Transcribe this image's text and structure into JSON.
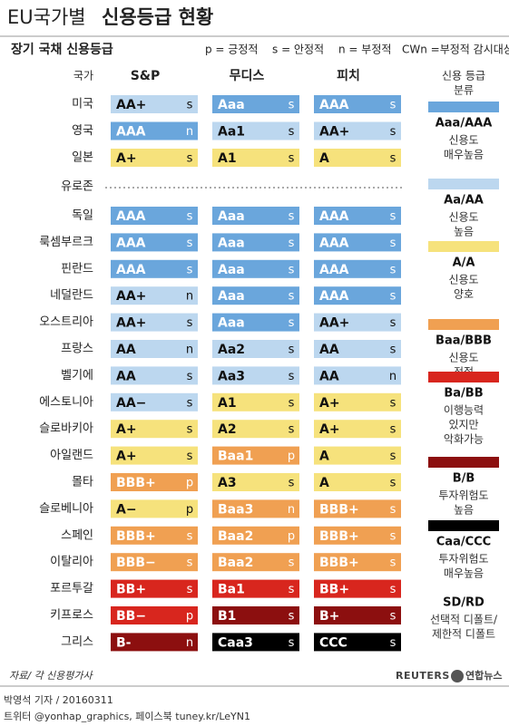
{
  "header": {
    "title_prefix": "EU국가별",
    "title_main": "신용등급 현황",
    "subtitle": "장기 국채 신용등급",
    "outlook_keys": [
      "p = 긍정적",
      "s = 안정적",
      "n = 부정적",
      "CWn =부정적 감시대상"
    ]
  },
  "columns": {
    "country": "국가",
    "agencies": [
      "S&P",
      "무디스",
      "피치"
    ],
    "legend": [
      "신용 등급",
      "분류"
    ]
  },
  "rows_top": [
    {
      "country": "미국",
      "cells": [
        {
          "rating": "AA+",
          "outlook": "s",
          "color": "#bcd7ef"
        },
        {
          "rating": "Aaa",
          "outlook": "s",
          "color": "#6aa6dc"
        },
        {
          "rating": "AAA",
          "outlook": "s",
          "color": "#6aa6dc"
        }
      ]
    },
    {
      "country": "영국",
      "cells": [
        {
          "rating": "AAA",
          "outlook": "n",
          "color": "#6aa6dc"
        },
        {
          "rating": "Aa1",
          "outlook": "s",
          "color": "#bcd7ef"
        },
        {
          "rating": "AA+",
          "outlook": "s",
          "color": "#bcd7ef"
        }
      ]
    },
    {
      "country": "일본",
      "cells": [
        {
          "rating": "A+",
          "outlook": "s",
          "color": "#f6e27c"
        },
        {
          "rating": "A1",
          "outlook": "s",
          "color": "#f6e27c"
        },
        {
          "rating": "A",
          "outlook": "s",
          "color": "#f6e27c"
        }
      ]
    }
  ],
  "section": "유로존",
  "rows_euro": [
    {
      "country": "독일",
      "cells": [
        {
          "rating": "AAA",
          "outlook": "s",
          "color": "#6aa6dc"
        },
        {
          "rating": "Aaa",
          "outlook": "s",
          "color": "#6aa6dc"
        },
        {
          "rating": "AAA",
          "outlook": "s",
          "color": "#6aa6dc"
        }
      ]
    },
    {
      "country": "룩셈부르크",
      "cells": [
        {
          "rating": "AAA",
          "outlook": "s",
          "color": "#6aa6dc"
        },
        {
          "rating": "Aaa",
          "outlook": "s",
          "color": "#6aa6dc"
        },
        {
          "rating": "AAA",
          "outlook": "s",
          "color": "#6aa6dc"
        }
      ]
    },
    {
      "country": "핀란드",
      "cells": [
        {
          "rating": "AAA",
          "outlook": "s",
          "color": "#6aa6dc"
        },
        {
          "rating": "Aaa",
          "outlook": "s",
          "color": "#6aa6dc"
        },
        {
          "rating": "AAA",
          "outlook": "s",
          "color": "#6aa6dc"
        }
      ]
    },
    {
      "country": "네덜란드",
      "cells": [
        {
          "rating": "AA+",
          "outlook": "n",
          "color": "#bcd7ef"
        },
        {
          "rating": "Aaa",
          "outlook": "s",
          "color": "#6aa6dc"
        },
        {
          "rating": "AAA",
          "outlook": "s",
          "color": "#6aa6dc"
        }
      ]
    },
    {
      "country": "오스트리아",
      "cells": [
        {
          "rating": "AA+",
          "outlook": "s",
          "color": "#bcd7ef"
        },
        {
          "rating": "Aaa",
          "outlook": "s",
          "color": "#6aa6dc"
        },
        {
          "rating": "AA+",
          "outlook": "s",
          "color": "#bcd7ef"
        }
      ]
    },
    {
      "country": "프랑스",
      "cells": [
        {
          "rating": "AA",
          "outlook": "n",
          "color": "#bcd7ef"
        },
        {
          "rating": "Aa2",
          "outlook": "s",
          "color": "#bcd7ef"
        },
        {
          "rating": "AA",
          "outlook": "s",
          "color": "#bcd7ef"
        }
      ]
    },
    {
      "country": "벨기에",
      "cells": [
        {
          "rating": "AA",
          "outlook": "s",
          "color": "#bcd7ef"
        },
        {
          "rating": "Aa3",
          "outlook": "s",
          "color": "#bcd7ef"
        },
        {
          "rating": "AA",
          "outlook": "n",
          "color": "#bcd7ef"
        }
      ]
    },
    {
      "country": "에스토니아",
      "cells": [
        {
          "rating": "AA−",
          "outlook": "s",
          "color": "#bcd7ef"
        },
        {
          "rating": "A1",
          "outlook": "s",
          "color": "#f6e27c"
        },
        {
          "rating": "A+",
          "outlook": "s",
          "color": "#f6e27c"
        }
      ]
    },
    {
      "country": "슬로바키아",
      "cells": [
        {
          "rating": "A+",
          "outlook": "s",
          "color": "#f6e27c"
        },
        {
          "rating": "A2",
          "outlook": "s",
          "color": "#f6e27c"
        },
        {
          "rating": "A+",
          "outlook": "s",
          "color": "#f6e27c"
        }
      ]
    },
    {
      "country": "아일랜드",
      "cells": [
        {
          "rating": "A+",
          "outlook": "s",
          "color": "#f6e27c"
        },
        {
          "rating": "Baa1",
          "outlook": "p",
          "color": "#f0a052"
        },
        {
          "rating": "A",
          "outlook": "s",
          "color": "#f6e27c"
        }
      ]
    },
    {
      "country": "몰타",
      "cells": [
        {
          "rating": "BBB+",
          "outlook": "p",
          "color": "#f0a052"
        },
        {
          "rating": "A3",
          "outlook": "s",
          "color": "#f6e27c"
        },
        {
          "rating": "A",
          "outlook": "s",
          "color": "#f6e27c"
        }
      ]
    },
    {
      "country": "슬로베니아",
      "cells": [
        {
          "rating": "A−",
          "outlook": "p",
          "color": "#f6e27c"
        },
        {
          "rating": "Baa3",
          "outlook": "n",
          "color": "#f0a052"
        },
        {
          "rating": "BBB+",
          "outlook": "s",
          "color": "#f0a052"
        }
      ]
    },
    {
      "country": "스페인",
      "cells": [
        {
          "rating": "BBB+",
          "outlook": "s",
          "color": "#f0a052"
        },
        {
          "rating": "Baa2",
          "outlook": "p",
          "color": "#f0a052"
        },
        {
          "rating": "BBB+",
          "outlook": "s",
          "color": "#f0a052"
        }
      ]
    },
    {
      "country": "이탈리아",
      "cells": [
        {
          "rating": "BBB−",
          "outlook": "s",
          "color": "#f0a052"
        },
        {
          "rating": "Baa2",
          "outlook": "s",
          "color": "#f0a052"
        },
        {
          "rating": "BBB+",
          "outlook": "s",
          "color": "#f0a052"
        }
      ]
    },
    {
      "country": "포르투갈",
      "cells": [
        {
          "rating": "BB+",
          "outlook": "s",
          "color": "#d8261e"
        },
        {
          "rating": "Ba1",
          "outlook": "s",
          "color": "#d8261e"
        },
        {
          "rating": "BB+",
          "outlook": "s",
          "color": "#d8261e"
        }
      ]
    },
    {
      "country": "키프로스",
      "cells": [
        {
          "rating": "BB−",
          "outlook": "p",
          "color": "#d8261e"
        },
        {
          "rating": "B1",
          "outlook": "s",
          "color": "#8c0f0f"
        },
        {
          "rating": "B+",
          "outlook": "s",
          "color": "#8c0f0f"
        }
      ]
    },
    {
      "country": "그리스",
      "cells": [
        {
          "rating": "B-",
          "outlook": "n",
          "color": "#8c0f0f"
        },
        {
          "rating": "Caa3",
          "outlook": "s",
          "color": "#000000"
        },
        {
          "rating": "CCC",
          "outlook": "s",
          "color": "#000000"
        }
      ]
    }
  ],
  "legend": [
    {
      "label": "Aaa/AAA",
      "color": "#6aa6dc",
      "desc": [
        "신용도",
        "매우높음"
      ]
    },
    {
      "label": "Aa/AA",
      "color": "#bcd7ef",
      "desc": [
        "신용도",
        "높음"
      ]
    },
    {
      "label": "A/A",
      "color": "#f6e27c",
      "desc": [
        "신용도",
        "양호"
      ]
    },
    {
      "label": "Baa/BBB",
      "color": "#f0a052",
      "desc": [
        "신용도",
        "적절"
      ]
    },
    {
      "label": "Ba/BB",
      "color": "#d8261e",
      "desc": [
        "이행능력",
        "있지만",
        "악화가능"
      ]
    },
    {
      "label": "B/B",
      "color": "#8c0f0f",
      "desc": [
        "투자위험도",
        "높음"
      ]
    },
    {
      "label": "Caa/CCC",
      "color": "#000000",
      "desc": [
        "투자위험도",
        "매우높음"
      ]
    },
    {
      "label": "SD/RD",
      "desc": [
        "선택적 디폴트/",
        "제한적 디폴트"
      ]
    }
  ],
  "footer": {
    "source": "자료/ 각 신용평가사",
    "reuters": "REUTERS",
    "yonhap": "연합뉴스",
    "byline": "박영석 기자 / 20160311",
    "social": "트위터 @yonhap_graphics, 페이스북 tuney.kr/LeYN1"
  }
}
